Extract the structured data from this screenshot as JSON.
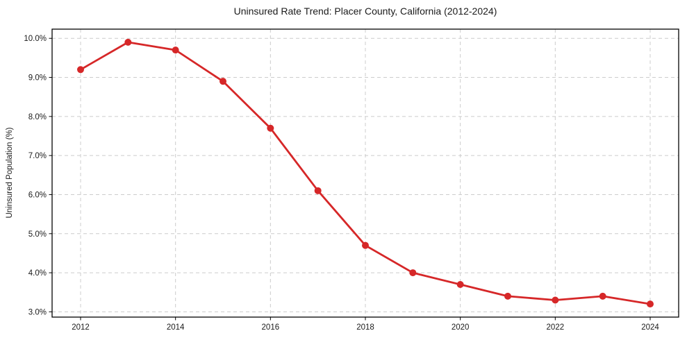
{
  "chart_data": {
    "type": "line",
    "title": "Uninsured Rate Trend: Placer County, California (2012-2024)",
    "xlabel": "",
    "ylabel": "Uninsured Population (%)",
    "x": [
      2012,
      2013,
      2014,
      2015,
      2016,
      2017,
      2018,
      2019,
      2020,
      2021,
      2022,
      2023,
      2024
    ],
    "values": [
      9.2,
      9.9,
      9.7,
      8.9,
      7.7,
      6.1,
      4.7,
      4.0,
      3.7,
      3.4,
      3.3,
      3.4,
      3.2
    ],
    "xticks": [
      2012,
      2014,
      2016,
      2018,
      2020,
      2022,
      2024
    ],
    "xtick_labels": [
      "2012",
      "2014",
      "2016",
      "2018",
      "2020",
      "2022",
      "2024"
    ],
    "yticks": [
      3,
      4,
      5,
      6,
      7,
      8,
      9,
      10
    ],
    "ytick_labels": [
      "3.0%",
      "4.0%",
      "5.0%",
      "6.0%",
      "7.0%",
      "8.0%",
      "9.0%",
      "10.0%"
    ],
    "xlim": [
      2011.4,
      2024.6
    ],
    "ylim": [
      2.865,
      10.235
    ],
    "grid": true,
    "legend": false,
    "marker": "circle",
    "colors": {
      "line": "#d62728",
      "grid": "#cccccc",
      "axis": "#000000",
      "text": "#1a1a1a",
      "background": "#ffffff"
    }
  }
}
